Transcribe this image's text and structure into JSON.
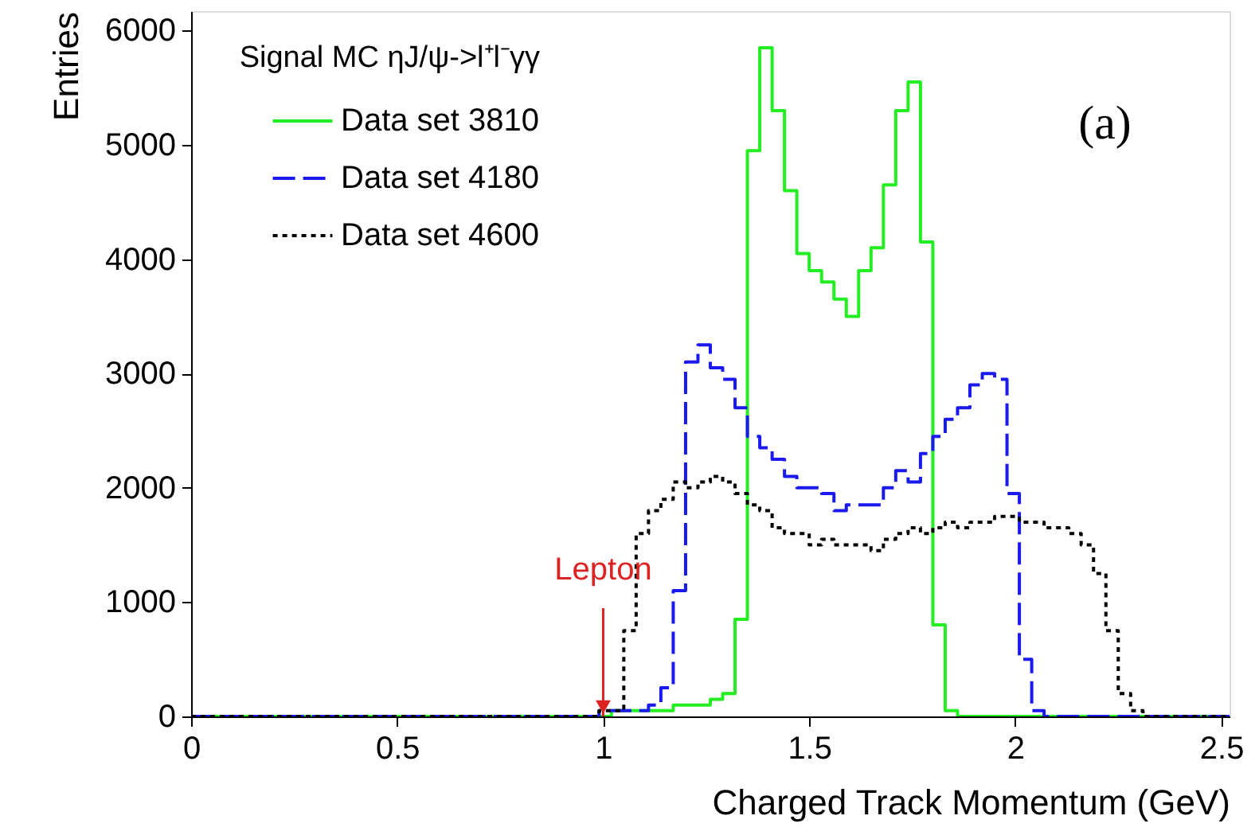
{
  "chart_data": {
    "type": "histogram",
    "xlabel": "Charged Track Momentum (GeV)",
    "ylabel": "Entries",
    "legend_title": "Signal MC ηJ/ψ->l⁺l⁻γγ",
    "legend": "top left",
    "bins": [
      0,
      0.03,
      0.06,
      0.09,
      0.12,
      0.15,
      0.18,
      0.21,
      0.24,
      0.27,
      0.3,
      0.33,
      0.36,
      0.39,
      0.42,
      0.45,
      0.48,
      0.51,
      0.54,
      0.57,
      0.6,
      0.63,
      0.66,
      0.69,
      0.72,
      0.75,
      0.78,
      0.81,
      0.84,
      0.87,
      0.9,
      0.93,
      0.96,
      0.99,
      1.02,
      1.05,
      1.08,
      1.11,
      1.14,
      1.17,
      1.2,
      1.23,
      1.26,
      1.29,
      1.32,
      1.35,
      1.38,
      1.41,
      1.44,
      1.47,
      1.5,
      1.53,
      1.56,
      1.59,
      1.62,
      1.65,
      1.68,
      1.71,
      1.74,
      1.77,
      1.8,
      1.83,
      1.86,
      1.89,
      1.92,
      1.95,
      1.98,
      2.01,
      2.04,
      2.07,
      2.1,
      2.13,
      2.16,
      2.19,
      2.22,
      2.25,
      2.28,
      2.31,
      2.34,
      2.37,
      2.4,
      2.43,
      2.46,
      2.49,
      2.52
    ],
    "series": [
      {
        "name": "Data set 3810",
        "color": "#22ee22",
        "line_style": "solid",
        "values": [
          0,
          0,
          0,
          0,
          0,
          0,
          0,
          0,
          0,
          0,
          0,
          0,
          0,
          0,
          0,
          0,
          0,
          0,
          0,
          0,
          0,
          0,
          0,
          0,
          0,
          0,
          0,
          0,
          0,
          0,
          0,
          0,
          0,
          0,
          50,
          50,
          50,
          50,
          50,
          100,
          100,
          100,
          150,
          200,
          850,
          4950,
          5850,
          5300,
          4600,
          4050,
          3900,
          3800,
          3650,
          3500,
          3900,
          4100,
          4650,
          5300,
          5550,
          4150,
          800,
          50,
          0,
          0,
          0,
          0,
          0,
          0,
          0,
          0,
          0,
          0,
          0,
          0,
          0,
          0,
          0,
          0,
          0,
          0,
          0,
          0,
          0,
          0
        ]
      },
      {
        "name": "Data set 4180",
        "color": "#1a1aee",
        "line_style": "dashed",
        "values": [
          0,
          0,
          0,
          0,
          0,
          0,
          0,
          0,
          0,
          0,
          0,
          0,
          0,
          0,
          0,
          0,
          0,
          0,
          0,
          0,
          0,
          0,
          0,
          0,
          0,
          0,
          0,
          0,
          0,
          0,
          0,
          0,
          0,
          50,
          50,
          50,
          50,
          100,
          250,
          1100,
          3100,
          3250,
          3050,
          2950,
          2700,
          2450,
          2350,
          2250,
          2100,
          2000,
          2000,
          1950,
          1800,
          1850,
          1850,
          1850,
          2000,
          2150,
          2050,
          2300,
          2450,
          2600,
          2700,
          2900,
          3000,
          2950,
          1950,
          500,
          50,
          0,
          0,
          0,
          0,
          0,
          0,
          0,
          0,
          0,
          0,
          0,
          0,
          0,
          0,
          0
        ]
      },
      {
        "name": "Data set 4600",
        "color": "#000000",
        "line_style": "dotted",
        "values": [
          0,
          0,
          0,
          0,
          0,
          0,
          0,
          0,
          0,
          0,
          0,
          0,
          0,
          0,
          0,
          0,
          0,
          0,
          0,
          0,
          0,
          0,
          0,
          0,
          0,
          0,
          0,
          0,
          0,
          0,
          0,
          0,
          0,
          50,
          50,
          750,
          1600,
          1800,
          1900,
          2050,
          2000,
          2050,
          2100,
          2050,
          1950,
          1850,
          1800,
          1650,
          1600,
          1600,
          1500,
          1550,
          1500,
          1500,
          1500,
          1450,
          1550,
          1600,
          1650,
          1600,
          1650,
          1700,
          1650,
          1700,
          1700,
          1750,
          1750,
          1700,
          1700,
          1650,
          1650,
          1600,
          1500,
          1250,
          750,
          200,
          50,
          0,
          0,
          0,
          0,
          0,
          0,
          0
        ]
      }
    ],
    "xlim": [
      0,
      2.52
    ],
    "xticks": [
      0,
      0.5,
      1,
      1.5,
      2,
      2.5
    ],
    "ylim": [
      0,
      6170
    ],
    "yticks": [
      0,
      1000,
      2000,
      3000,
      4000,
      5000,
      6000
    ],
    "grid": false,
    "annotations": [
      {
        "text": "Lepton",
        "x": 1,
        "y": 0
      },
      "(a)"
    ]
  }
}
